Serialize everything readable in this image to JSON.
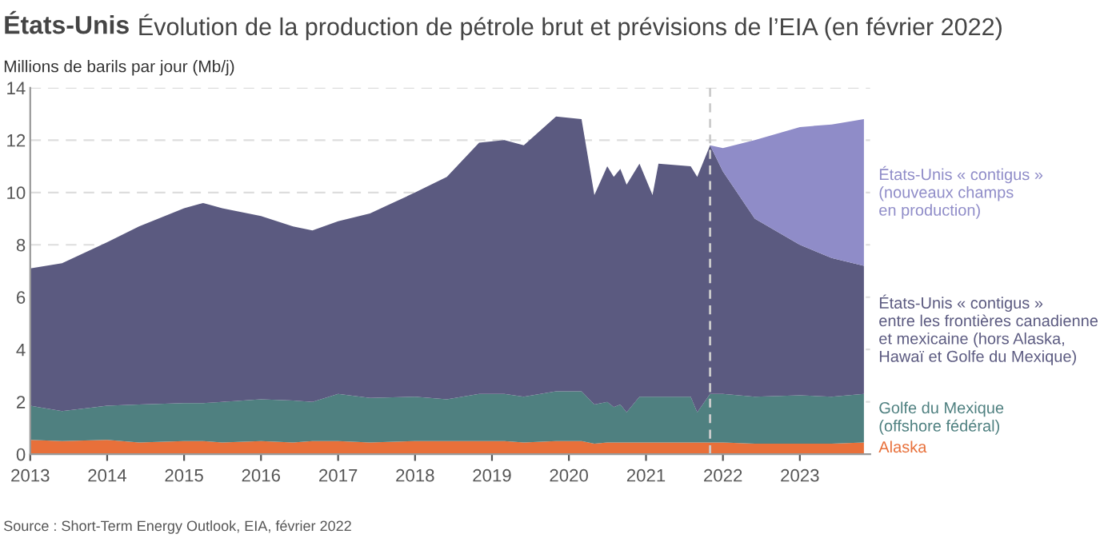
{
  "chart_data": {
    "type": "area",
    "stacked": true,
    "title": "États-Unis",
    "subtitle": "Évolution de la production de pétrole brut et prévisions de l’EIA (en février 2022)",
    "ylabel": "Millions de barils par jour (Mb/j)",
    "x": [
      "2013-01",
      "2013-06",
      "2014-01",
      "2014-06",
      "2015-01",
      "2015-04",
      "2015-07",
      "2016-01",
      "2016-06",
      "2016-09",
      "2017-01",
      "2017-06",
      "2018-01",
      "2018-06",
      "2018-11",
      "2019-03",
      "2019-06",
      "2019-11",
      "2020-03",
      "2020-05",
      "2020-07",
      "2020-08",
      "2020-09",
      "2020-10",
      "2020-12",
      "2021-02",
      "2021-03",
      "2021-08",
      "2021-09",
      "2021-11",
      "2022-01",
      "2022-06",
      "2023-01",
      "2023-06",
      "2023-11"
    ],
    "series": [
      {
        "name": "Alaska",
        "color": "#e8703a",
        "values": [
          0.55,
          0.5,
          0.55,
          0.45,
          0.5,
          0.5,
          0.45,
          0.5,
          0.45,
          0.5,
          0.5,
          0.45,
          0.5,
          0.5,
          0.5,
          0.5,
          0.45,
          0.5,
          0.5,
          0.4,
          0.45,
          0.45,
          0.45,
          0.45,
          0.45,
          0.45,
          0.45,
          0.45,
          0.45,
          0.45,
          0.45,
          0.4,
          0.4,
          0.4,
          0.45
        ]
      },
      {
        "name": "Golfe du Mexique\n(offshore fédéral)",
        "color": "#4f8080",
        "values": [
          1.3,
          1.15,
          1.3,
          1.45,
          1.45,
          1.45,
          1.55,
          1.6,
          1.6,
          1.5,
          1.8,
          1.7,
          1.7,
          1.6,
          1.8,
          1.8,
          1.75,
          1.9,
          1.9,
          1.5,
          1.55,
          1.35,
          1.45,
          1.15,
          1.75,
          1.75,
          1.75,
          1.75,
          1.15,
          1.85,
          1.85,
          1.8,
          1.85,
          1.8,
          1.85
        ]
      },
      {
        "name": "États-Unis « contigus »\nentre les frontières canadienne\net mexicaine (hors Alaska,\nHawaï et Golfe du Mexique)",
        "color": "#5b5a80",
        "values": [
          5.25,
          5.65,
          6.25,
          6.8,
          7.45,
          7.65,
          7.4,
          7.0,
          6.65,
          6.55,
          6.6,
          7.05,
          7.8,
          8.5,
          9.6,
          9.7,
          9.6,
          10.5,
          10.4,
          8.0,
          9.0,
          8.8,
          9.0,
          8.7,
          8.9,
          7.7,
          8.9,
          8.8,
          9.0,
          9.5,
          8.5,
          6.8,
          5.75,
          5.3,
          4.9
        ]
      },
      {
        "name": "États-Unis « contigus »\n(nouveaux champs\nen production)",
        "color": "#8f8cc8",
        "values": [
          null,
          null,
          null,
          null,
          null,
          null,
          null,
          null,
          null,
          null,
          null,
          null,
          null,
          null,
          null,
          null,
          null,
          null,
          null,
          null,
          null,
          null,
          null,
          null,
          null,
          null,
          null,
          null,
          null,
          0,
          0.9,
          3.0,
          4.5,
          5.1,
          5.6
        ]
      }
    ],
    "xlim": [
      "2013-01",
      "2023-12"
    ],
    "xticks": [
      {
        "value": "2013-01",
        "label": "2013"
      },
      {
        "value": "2014-01",
        "label": "2014"
      },
      {
        "value": "2015-01",
        "label": "2015"
      },
      {
        "value": "2016-01",
        "label": "2016"
      },
      {
        "value": "2017-01",
        "label": "2017"
      },
      {
        "value": "2018-01",
        "label": "2018"
      },
      {
        "value": "2019-01",
        "label": "2019"
      },
      {
        "value": "2020-01",
        "label": "2020"
      },
      {
        "value": "2021-01",
        "label": "2021"
      },
      {
        "value": "2022-01",
        "label": "2022"
      },
      {
        "value": "2023-01",
        "label": "2023"
      }
    ],
    "ylim": [
      0,
      14
    ],
    "yticks": [
      0,
      2,
      4,
      6,
      8,
      10,
      12,
      14
    ],
    "grid": "y",
    "legend": false,
    "ref_lines": [
      {
        "axis": "x",
        "value": "2021-11",
        "color": "#cccccc",
        "line_style": "dashed"
      }
    ],
    "annotations": [
      "Source : Short-Term Energy Outlook, EIA, février 2022"
    ]
  }
}
